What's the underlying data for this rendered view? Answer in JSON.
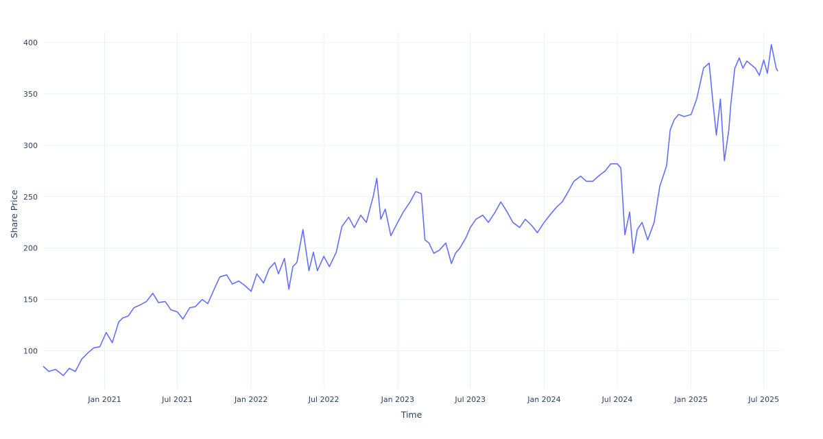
{
  "chart_data": {
    "type": "line",
    "title": "",
    "xlabel": "Time",
    "ylabel": "Share Price",
    "grid": true,
    "legend": "none",
    "line_color": "#636efa",
    "grid_color": "#ebf0f8",
    "text_color": "#2a3f5f",
    "xlim": [
      "2020-08-01",
      "2025-08-10"
    ],
    "ylim": [
      63,
      410
    ],
    "x_ticks": [
      {
        "date": "2021-01-01",
        "label": "Jan 2021"
      },
      {
        "date": "2021-07-01",
        "label": "Jul 2021"
      },
      {
        "date": "2022-01-01",
        "label": "Jan 2022"
      },
      {
        "date": "2022-07-01",
        "label": "Jul 2022"
      },
      {
        "date": "2023-01-01",
        "label": "Jan 2023"
      },
      {
        "date": "2023-07-01",
        "label": "Jul 2023"
      },
      {
        "date": "2024-01-01",
        "label": "Jan 2024"
      },
      {
        "date": "2024-07-01",
        "label": "Jul 2024"
      },
      {
        "date": "2025-01-01",
        "label": "Jan 2025"
      },
      {
        "date": "2025-07-01",
        "label": "Jul 2025"
      }
    ],
    "y_ticks": [
      {
        "value": 100,
        "label": "100"
      },
      {
        "value": 150,
        "label": "150"
      },
      {
        "value": 200,
        "label": "200"
      },
      {
        "value": 250,
        "label": "250"
      },
      {
        "value": 300,
        "label": "300"
      },
      {
        "value": 350,
        "label": "350"
      },
      {
        "value": 400,
        "label": "400"
      }
    ],
    "series": [
      {
        "x": [
          "2020-08-01",
          "2020-08-15",
          "2020-09-01",
          "2020-09-20",
          "2020-10-05",
          "2020-10-20",
          "2020-11-05",
          "2020-11-20",
          "2020-12-05",
          "2020-12-20",
          "2021-01-05",
          "2021-01-20",
          "2021-02-05",
          "2021-02-15",
          "2021-03-01",
          "2021-03-15",
          "2021-04-01",
          "2021-04-15",
          "2021-05-01",
          "2021-05-15",
          "2021-06-01",
          "2021-06-15",
          "2021-07-01",
          "2021-07-15",
          "2021-08-01",
          "2021-08-15",
          "2021-09-01",
          "2021-09-15",
          "2021-10-01",
          "2021-10-15",
          "2021-11-01",
          "2021-11-15",
          "2021-12-01",
          "2021-12-15",
          "2022-01-01",
          "2022-01-15",
          "2022-02-01",
          "2022-02-15",
          "2022-03-01",
          "2022-03-10",
          "2022-03-25",
          "2022-04-05",
          "2022-04-15",
          "2022-04-25",
          "2022-05-10",
          "2022-05-25",
          "2022-06-05",
          "2022-06-15",
          "2022-07-01",
          "2022-07-15",
          "2022-08-01",
          "2022-08-15",
          "2022-09-01",
          "2022-09-15",
          "2022-10-01",
          "2022-10-15",
          "2022-10-25",
          "2022-11-01",
          "2022-11-10",
          "2022-11-20",
          "2022-12-01",
          "2022-12-15",
          "2023-01-01",
          "2023-01-15",
          "2023-02-01",
          "2023-02-15",
          "2023-03-01",
          "2023-03-10",
          "2023-03-20",
          "2023-04-01",
          "2023-04-15",
          "2023-05-01",
          "2023-05-15",
          "2023-05-25",
          "2023-06-05",
          "2023-06-20",
          "2023-07-01",
          "2023-07-15",
          "2023-08-01",
          "2023-08-15",
          "2023-09-01",
          "2023-09-15",
          "2023-10-01",
          "2023-10-15",
          "2023-11-01",
          "2023-11-15",
          "2023-12-01",
          "2023-12-15",
          "2024-01-01",
          "2024-01-15",
          "2024-02-01",
          "2024-02-15",
          "2024-03-01",
          "2024-03-15",
          "2024-04-01",
          "2024-04-15",
          "2024-05-01",
          "2024-05-15",
          "2024-06-01",
          "2024-06-15",
          "2024-07-01",
          "2024-07-10",
          "2024-07-20",
          "2024-08-01",
          "2024-08-10",
          "2024-08-20",
          "2024-09-01",
          "2024-09-15",
          "2024-10-01",
          "2024-10-15",
          "2024-11-01",
          "2024-11-10",
          "2024-11-20",
          "2024-12-01",
          "2024-12-15",
          "2025-01-01",
          "2025-01-15",
          "2025-02-01",
          "2025-02-15",
          "2025-02-25",
          "2025-03-05",
          "2025-03-15",
          "2025-03-25",
          "2025-04-05",
          "2025-04-10",
          "2025-04-20",
          "2025-05-01",
          "2025-05-10",
          "2025-05-20",
          "2025-06-01",
          "2025-06-10",
          "2025-06-20",
          "2025-07-01",
          "2025-07-10",
          "2025-07-20",
          "2025-08-01",
          "2025-08-05"
        ],
        "y": [
          85,
          80,
          82,
          76,
          83,
          80,
          92,
          98,
          103,
          104,
          118,
          108,
          128,
          132,
          134,
          142,
          145,
          148,
          156,
          147,
          148,
          140,
          138,
          131,
          142,
          143,
          150,
          146,
          160,
          172,
          174,
          165,
          168,
          164,
          158,
          175,
          166,
          180,
          186,
          175,
          190,
          160,
          182,
          186,
          218,
          178,
          196,
          178,
          192,
          182,
          196,
          221,
          230,
          220,
          232,
          225,
          240,
          250,
          268,
          228,
          238,
          212,
          225,
          235,
          245,
          255,
          253,
          208,
          205,
          195,
          198,
          205,
          185,
          195,
          200,
          210,
          220,
          228,
          232,
          225,
          235,
          245,
          235,
          225,
          220,
          228,
          222,
          215,
          225,
          232,
          240,
          245,
          255,
          265,
          270,
          265,
          265,
          270,
          275,
          282,
          282,
          278,
          213,
          235,
          195,
          218,
          225,
          208,
          225,
          260,
          280,
          315,
          325,
          330,
          328,
          330,
          345,
          375,
          380,
          340,
          310,
          345,
          285,
          315,
          340,
          375,
          385,
          375,
          382,
          378,
          375,
          368,
          383,
          370,
          398,
          375,
          372
        ]
      }
    ]
  }
}
